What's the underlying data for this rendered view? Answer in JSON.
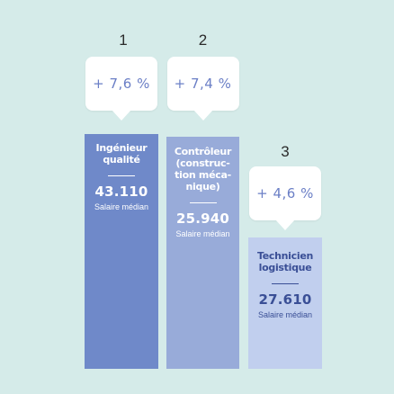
{
  "chart_data": {
    "type": "bar",
    "categories": [
      "Ingénieur\nqualité",
      "Contrôleur\n(construc-\ntion méca-\nnique)",
      "Technicien\nlogistique"
    ],
    "values": [
      43110,
      25940,
      27610
    ],
    "value_labels": [
      "43.110",
      "25.940",
      "27.610"
    ],
    "value_caption": "Salaire médian",
    "growth_labels": [
      "+ 7,6 %",
      "+ 7,4 %",
      "+ 4,6 %"
    ],
    "growth": [
      7.6,
      7.4,
      4.6
    ],
    "ranks": [
      "1",
      "2",
      "3"
    ],
    "bar_colors": [
      "#6f89c9",
      "#98abd9",
      "#c1cfee"
    ],
    "text_colors": [
      "#ffffff",
      "#ffffff",
      "#3a4f96"
    ],
    "bubble_text_color": "#6b7fc6",
    "background": "#d5ebe9"
  }
}
